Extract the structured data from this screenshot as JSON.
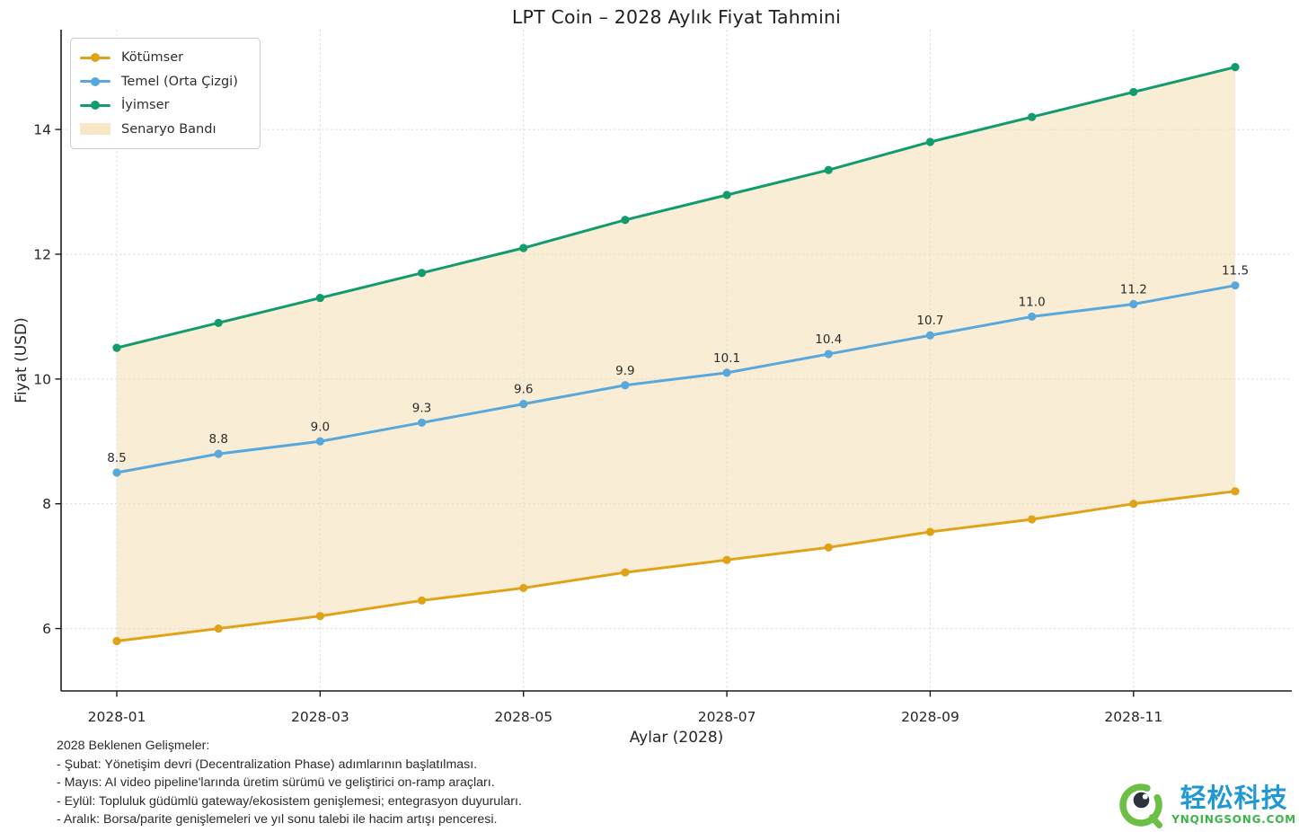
{
  "title": "LPT Coin – 2028 Aylık Fiyat Tahmini",
  "colors": {
    "grid": "#dcdcdc",
    "axis": "#1a1a1a",
    "tick_text": "#262626",
    "point_label_text": "#2b2b2b",
    "band_fill": "rgba(245,222,179,0.55)"
  },
  "chart_data": {
    "type": "line",
    "title": "LPT Coin – 2028 Aylık Fiyat Tahmini",
    "xlabel": "Aylar (2028)",
    "ylabel": "Fiyat (USD)",
    "categories": [
      "2028-01",
      "2028-02",
      "2028-03",
      "2028-04",
      "2028-05",
      "2028-06",
      "2028-07",
      "2028-08",
      "2028-09",
      "2028-10",
      "2028-11",
      "2028-12"
    ],
    "x_tick_labels": [
      "2028-01",
      "2028-03",
      "2028-05",
      "2028-07",
      "2028-09",
      "2028-11"
    ],
    "y_ticks": [
      6,
      8,
      10,
      12,
      14
    ],
    "ylim": [
      5.0,
      15.6
    ],
    "grid": true,
    "legend_position": "upper-left",
    "series": [
      {
        "key": "kotumser",
        "name": "Kötümser",
        "color": "#e0a317",
        "values": [
          5.8,
          6.0,
          6.2,
          6.45,
          6.65,
          6.9,
          7.1,
          7.3,
          7.55,
          7.75,
          8.0,
          8.2
        ]
      },
      {
        "key": "temel",
        "name": "Temel (Orta Çizgi)",
        "color": "#58a8dc",
        "values": [
          8.5,
          8.8,
          9.0,
          9.3,
          9.6,
          9.9,
          10.1,
          10.4,
          10.7,
          11.0,
          11.2,
          11.5
        ],
        "point_labels": [
          "8.5",
          "8.8",
          "9.0",
          "9.3",
          "9.6",
          "9.9",
          "10.1",
          "10.4",
          "10.7",
          "11.0",
          "11.2",
          "11.5"
        ]
      },
      {
        "key": "iyimser",
        "name": "İyimser",
        "color": "#129c6d",
        "values": [
          10.5,
          10.9,
          11.3,
          11.7,
          12.1,
          12.55,
          12.95,
          13.35,
          13.8,
          14.2,
          14.6,
          15.0
        ]
      }
    ],
    "band": {
      "name": "Senaryo Bandı",
      "upper_series": "iyimser",
      "lower_series": "kotumser",
      "fill": "rgba(245,222,179,0.55)"
    }
  },
  "legend": {
    "items": [
      {
        "label": "Kötümser",
        "swatch": "line-marker",
        "color": "#e0a317"
      },
      {
        "label": "Temel (Orta Çizgi)",
        "swatch": "line-marker",
        "color": "#58a8dc"
      },
      {
        "label": "İyimser",
        "swatch": "line-marker",
        "color": "#129c6d"
      },
      {
        "label": "Senaryo Bandı",
        "swatch": "patch",
        "color": "rgba(245,222,179,0.75)"
      }
    ]
  },
  "footnote": {
    "lines": [
      "2028 Beklenen Gelişmeler:",
      "- Şubat: Yönetişim devri (Decentralization Phase) adımlarının başlatılması.",
      "- Mayıs: AI video pipeline'larında üretim sürümü ve geliştirici on-ramp araçları.",
      "- Eylül: Topluluk güdümlü gateway/ekosistem genişlemesi; entegrasyon duyuruları.",
      "- Aralık: Borsa/parite genişlemeleri ve yıl sonu talebi ile hacim artışı penceresi."
    ]
  },
  "logo": {
    "brand": "轻松科技",
    "domain": "YNQINGSONG.COM",
    "ring_color": "#6cbe45",
    "pupil_color": "#2a333c",
    "brand_color": "#2098d4",
    "domain_color": "#3cb449"
  }
}
